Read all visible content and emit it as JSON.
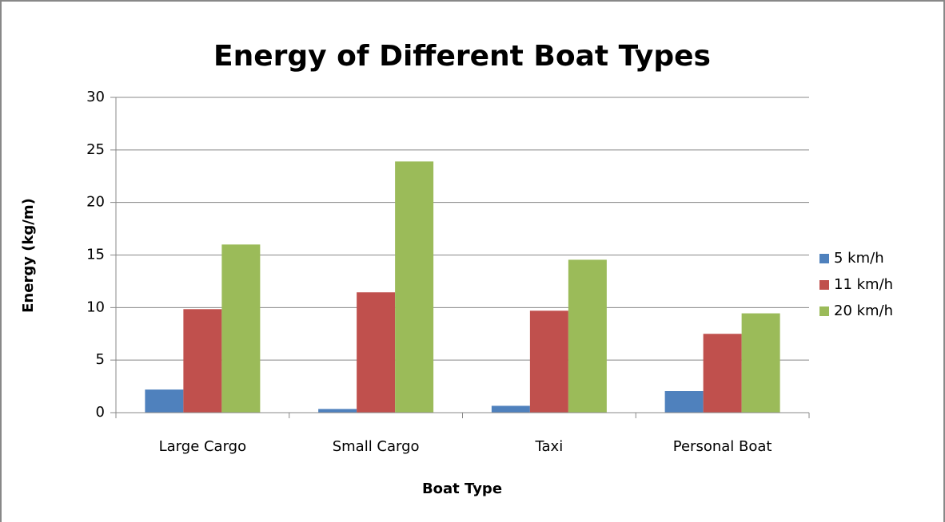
{
  "chart_data": {
    "type": "bar",
    "title": "Energy of Different Boat Types",
    "x_label": "Boat Type",
    "y_label": "Energy (kg/m)",
    "categories": [
      "Large Cargo",
      "Small Cargo",
      "Taxi",
      "Personal Boat"
    ],
    "series": [
      {
        "name": "5 km/h",
        "color": "#4f81bd",
        "values": [
          2.2,
          0.35,
          0.65,
          2.05
        ]
      },
      {
        "name": "11 km/h",
        "color": "#c0504d",
        "values": [
          9.85,
          11.45,
          9.7,
          7.5
        ]
      },
      {
        "name": "20 km/h",
        "color": "#9bbb59",
        "values": [
          16.0,
          23.9,
          14.55,
          9.45
        ]
      }
    ],
    "ylim": [
      0,
      30
    ],
    "yticks": [
      0,
      5,
      10,
      15,
      20,
      25,
      30
    ],
    "grid": true,
    "legend": "right"
  }
}
